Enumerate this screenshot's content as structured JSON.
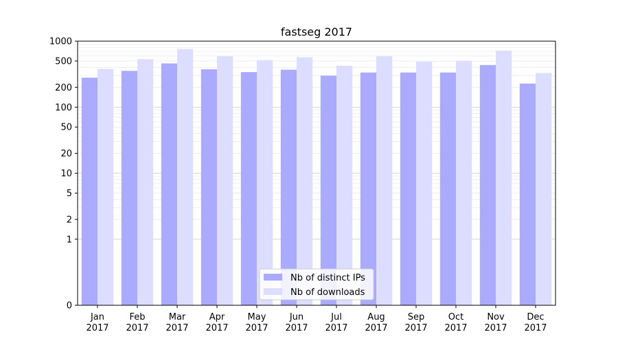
{
  "chart_data": {
    "type": "bar",
    "title": "fastseg 2017",
    "xlabel": "",
    "ylabel": "",
    "yscale": "symlog",
    "ylim": [
      0,
      1000
    ],
    "yticks": [
      0,
      1,
      2,
      5,
      10,
      20,
      50,
      100,
      200,
      500,
      1000
    ],
    "ytick_labels": [
      "0",
      "1",
      "2",
      "5",
      "10",
      "20",
      "50",
      "100",
      "200",
      "500",
      "1000"
    ],
    "grid": true,
    "legend_position": "bottom-center",
    "categories": [
      "Jan 2017",
      "Feb 2017",
      "Mar 2017",
      "Apr 2017",
      "May 2017",
      "Jun 2017",
      "Jul 2017",
      "Aug 2017",
      "Sep 2017",
      "Oct 2017",
      "Nov 2017",
      "Dec 2017"
    ],
    "category_lines": [
      [
        "Jan",
        "2017"
      ],
      [
        "Feb",
        "2017"
      ],
      [
        "Mar",
        "2017"
      ],
      [
        "Apr",
        "2017"
      ],
      [
        "May",
        "2017"
      ],
      [
        "Jun",
        "2017"
      ],
      [
        "Jul",
        "2017"
      ],
      [
        "Aug",
        "2017"
      ],
      [
        "Sep",
        "2017"
      ],
      [
        "Oct",
        "2017"
      ],
      [
        "Nov",
        "2017"
      ],
      [
        "Dec",
        "2017"
      ]
    ],
    "series": [
      {
        "name": "Nb of distinct IPs",
        "color": "#aaaaff",
        "values": [
          280,
          355,
          460,
          375,
          340,
          370,
          300,
          335,
          335,
          335,
          435,
          228
        ]
      },
      {
        "name": "Nb of downloads",
        "color": "#ddddff",
        "values": [
          380,
          535,
          760,
          590,
          515,
          570,
          425,
          590,
          490,
          505,
          720,
          330
        ]
      }
    ]
  }
}
